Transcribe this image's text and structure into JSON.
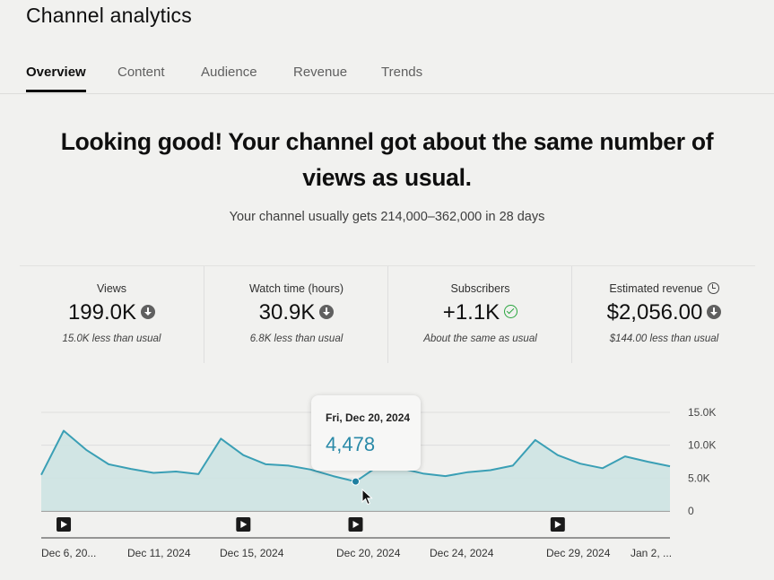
{
  "header": {
    "title": "Channel analytics"
  },
  "tabs": [
    {
      "label": "Overview",
      "active": true
    },
    {
      "label": "Content",
      "active": false
    },
    {
      "label": "Audience",
      "active": false
    },
    {
      "label": "Revenue",
      "active": false
    },
    {
      "label": "Trends",
      "active": false
    }
  ],
  "summary": {
    "headline_line1": "Looking good! Your channel got about the same number of",
    "headline_line2": "views as usual.",
    "subline": "Your channel usually gets 214,000–362,000 in 28 days"
  },
  "metrics": [
    {
      "label": "Views",
      "value": "199.0K",
      "indicator": "arrow-down-circle-icon",
      "note": "15.0K less than usual"
    },
    {
      "label": "Watch time (hours)",
      "value": "30.9K",
      "indicator": "arrow-down-circle-icon",
      "note": "6.8K less than usual"
    },
    {
      "label": "Subscribers",
      "value": "+1.1K",
      "indicator": "check-circle-icon",
      "note": "About the same as usual"
    },
    {
      "label": "Estimated revenue",
      "value": "$2,056.00",
      "indicator": "arrow-down-circle-icon",
      "note": "$144.00 less than usual",
      "label_icon": "clock-icon"
    }
  ],
  "colors": {
    "line": "#3a9fb5",
    "area": "#cde3e2",
    "tooltip_value": "#2a8aa8",
    "check": "#2ba640"
  },
  "tooltip": {
    "date": "Fri, Dec 20, 2024",
    "value": "4,478"
  },
  "chart_data": {
    "type": "area",
    "y_ticks": [
      "15.0K",
      "10.0K",
      "5.0K",
      "0"
    ],
    "ylim": [
      0,
      15000
    ],
    "x_labels": [
      "Dec 6, 20...",
      "Dec 11, 2024",
      "Dec 15, 2024",
      "Dec 20, 2024",
      "Dec 24, 2024",
      "Dec 29, 2024",
      "Jan 2, ..."
    ],
    "x": [
      "Dec 6",
      "Dec 7",
      "Dec 8",
      "Dec 9",
      "Dec 10",
      "Dec 11",
      "Dec 12",
      "Dec 13",
      "Dec 14",
      "Dec 15",
      "Dec 16",
      "Dec 17",
      "Dec 18",
      "Dec 19",
      "Dec 20",
      "Dec 21",
      "Dec 22",
      "Dec 23",
      "Dec 24",
      "Dec 25",
      "Dec 26",
      "Dec 27",
      "Dec 28",
      "Dec 29",
      "Dec 30",
      "Dec 31",
      "Jan 1",
      "Jan 2",
      "Jan 3"
    ],
    "values": [
      5500,
      12200,
      9300,
      7100,
      6400,
      5800,
      6000,
      5600,
      11000,
      8500,
      7100,
      6900,
      6300,
      5300,
      4478,
      6800,
      6500,
      5700,
      5300,
      5900,
      6200,
      6900,
      10800,
      8500,
      7200,
      6500,
      8300,
      7500,
      6800
    ],
    "video_markers": [
      "Dec 7",
      "Dec 15",
      "Dec 20",
      "Dec 29"
    ]
  }
}
